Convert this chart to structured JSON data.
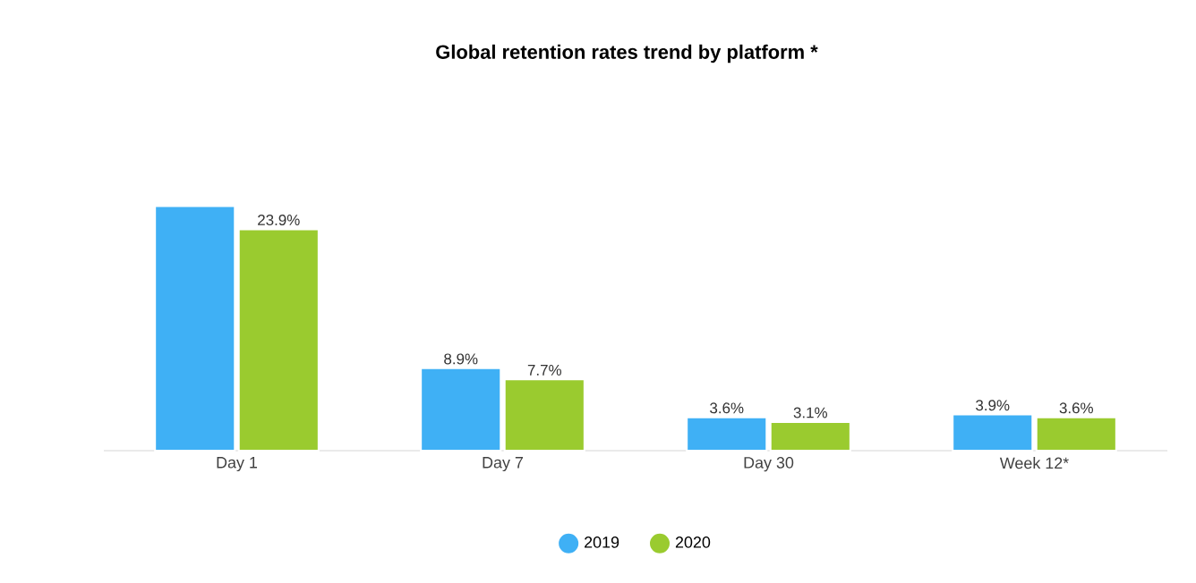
{
  "chart_data": {
    "type": "bar",
    "title": "Global retention rates trend by platform *",
    "categories": [
      "Day 1",
      "Day 7",
      "Day 30",
      "Week 12*"
    ],
    "series": [
      {
        "name": "2019",
        "color": "#3fb0f5",
        "values": [
          26.4,
          8.9,
          3.6,
          3.9
        ],
        "value_labels": [
          null,
          "8.9%",
          "3.6%",
          "3.9%"
        ]
      },
      {
        "name": "2020",
        "color": "#9acb2f",
        "values": [
          23.9,
          7.7,
          3.1,
          3.6
        ],
        "value_labels": [
          "23.9%",
          "7.7%",
          "3.1%",
          "3.6%"
        ]
      }
    ],
    "legend": "bottom"
  }
}
